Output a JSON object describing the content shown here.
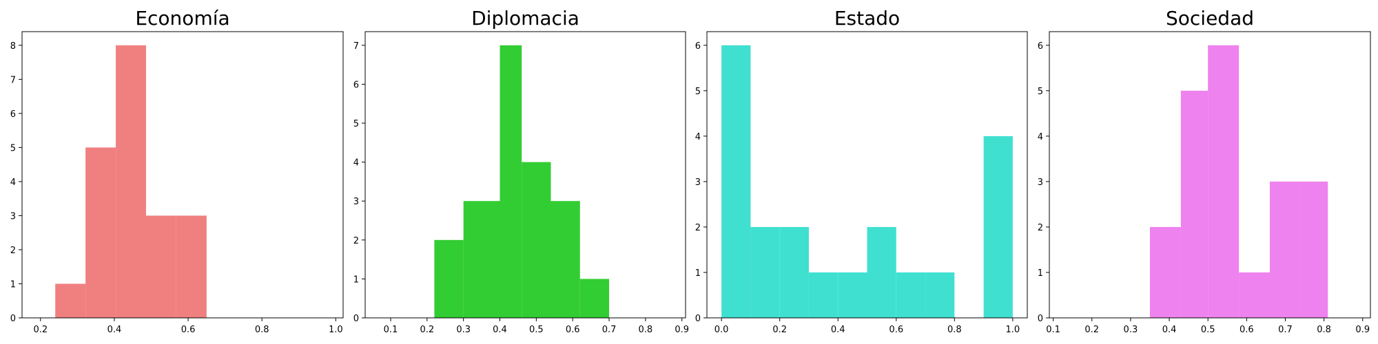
{
  "chart_data": [
    {
      "type": "bar",
      "title": "Economía",
      "color": "#f08080",
      "xlim": [
        0.15,
        1.02
      ],
      "ylim": [
        0,
        8.4
      ],
      "xticks": [
        "0.2",
        "0.4",
        "0.6",
        "0.8",
        "1.0"
      ],
      "xtick_values": [
        0.2,
        0.4,
        0.6,
        0.8,
        1.0
      ],
      "yticks": [
        "0",
        "1",
        "2",
        "3",
        "4",
        "5",
        "6",
        "7",
        "8"
      ],
      "ytick_values": [
        0,
        1,
        2,
        3,
        4,
        5,
        6,
        7,
        8
      ],
      "bins": [
        [
          0.24,
          0.322,
          1
        ],
        [
          0.322,
          0.404,
          5
        ],
        [
          0.404,
          0.486,
          8
        ],
        [
          0.486,
          0.568,
          3
        ],
        [
          0.568,
          0.65,
          3
        ]
      ]
    },
    {
      "type": "bar",
      "title": "Diplomacia",
      "color": "#32cd32",
      "xlim": [
        0.03,
        0.91
      ],
      "ylim": [
        0,
        7.35
      ],
      "xticks": [
        "0.1",
        "0.2",
        "0.3",
        "0.4",
        "0.5",
        "0.6",
        "0.7",
        "0.8",
        "0.9"
      ],
      "xtick_values": [
        0.1,
        0.2,
        0.3,
        0.4,
        0.5,
        0.6,
        0.7,
        0.8,
        0.9
      ],
      "yticks": [
        "0",
        "1",
        "2",
        "3",
        "4",
        "5",
        "6",
        "7"
      ],
      "ytick_values": [
        0,
        1,
        2,
        3,
        4,
        5,
        6,
        7
      ],
      "bins": [
        [
          0.22,
          0.3,
          2
        ],
        [
          0.3,
          0.4,
          3
        ],
        [
          0.4,
          0.46,
          7
        ],
        [
          0.46,
          0.54,
          4
        ],
        [
          0.54,
          0.62,
          3
        ],
        [
          0.62,
          0.7,
          1
        ]
      ]
    },
    {
      "type": "bar",
      "title": "Estado",
      "color": "#40e0d0",
      "xlim": [
        -0.05,
        1.05
      ],
      "ylim": [
        0,
        6.3
      ],
      "xticks": [
        "0.0",
        "0.2",
        "0.4",
        "0.6",
        "0.8",
        "1.0"
      ],
      "xtick_values": [
        0.0,
        0.2,
        0.4,
        0.6,
        0.8,
        1.0
      ],
      "yticks": [
        "0",
        "1",
        "2",
        "3",
        "4",
        "5",
        "6"
      ],
      "ytick_values": [
        0,
        1,
        2,
        3,
        4,
        5,
        6
      ],
      "bins": [
        [
          0.0,
          0.1,
          6
        ],
        [
          0.1,
          0.2,
          2
        ],
        [
          0.2,
          0.3,
          2
        ],
        [
          0.3,
          0.4,
          1
        ],
        [
          0.4,
          0.5,
          1
        ],
        [
          0.5,
          0.6,
          2
        ],
        [
          0.6,
          0.7,
          1
        ],
        [
          0.7,
          0.8,
          1
        ],
        [
          0.9,
          1.0,
          4
        ]
      ]
    },
    {
      "type": "bar",
      "title": "Sociedad",
      "color": "#ee82ee",
      "xlim": [
        0.09,
        0.92
      ],
      "ylim": [
        0,
        6.3
      ],
      "xticks": [
        "0.1",
        "0.2",
        "0.3",
        "0.4",
        "0.5",
        "0.6",
        "0.7",
        "0.8",
        "0.9"
      ],
      "xtick_values": [
        0.1,
        0.2,
        0.3,
        0.4,
        0.5,
        0.6,
        0.7,
        0.8,
        0.9
      ],
      "yticks": [
        "0",
        "1",
        "2",
        "3",
        "4",
        "5",
        "6"
      ],
      "ytick_values": [
        0,
        1,
        2,
        3,
        4,
        5,
        6
      ],
      "bins": [
        [
          0.35,
          0.43,
          2
        ],
        [
          0.43,
          0.5,
          5
        ],
        [
          0.5,
          0.58,
          6
        ],
        [
          0.58,
          0.66,
          1
        ],
        [
          0.66,
          0.74,
          3
        ],
        [
          0.74,
          0.81,
          3
        ]
      ]
    }
  ]
}
